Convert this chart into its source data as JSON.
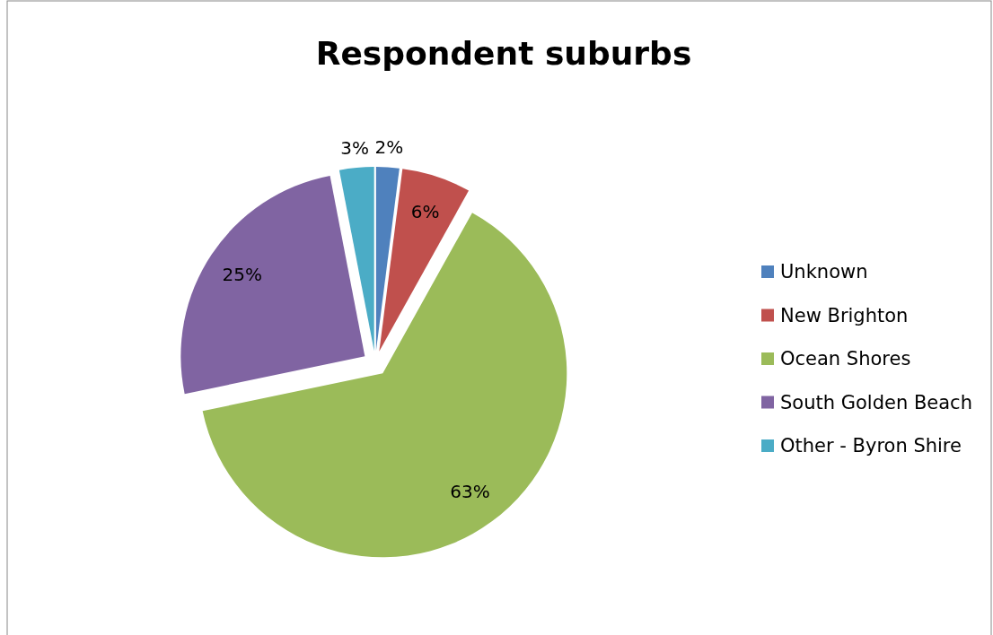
{
  "chart_data": {
    "type": "pie",
    "title": "Respondent suburbs",
    "categories": [
      "Unknown",
      "New Brighton",
      "Ocean Shores",
      "South Golden Beach",
      "Other - Byron Shire"
    ],
    "values": [
      2,
      6,
      63,
      25,
      3
    ],
    "colors": [
      "#4f81bd",
      "#c0504d",
      "#9bbb59",
      "#8064a2",
      "#4bacc6"
    ],
    "value_labels": [
      "2%",
      "6%",
      "63%",
      "25%",
      "3%"
    ],
    "legend": "right"
  }
}
